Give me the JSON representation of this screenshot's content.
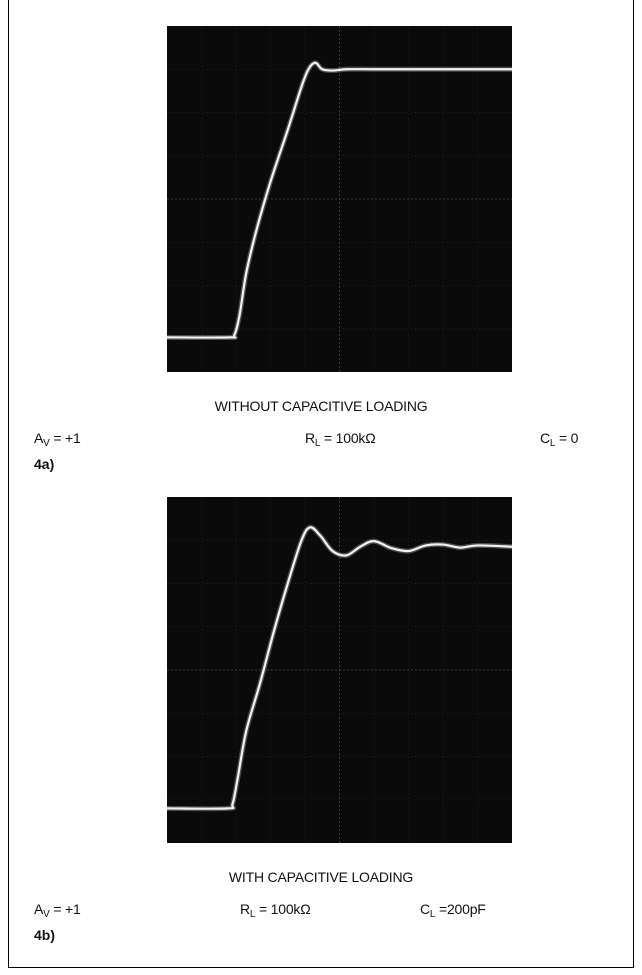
{
  "chart_data": [
    {
      "type": "line",
      "figure_label": "4a)",
      "caption": "WITHOUT CAPACITIVE LOADING",
      "conditions": {
        "av": {
          "symbol": "A",
          "sub": "V",
          "value": " = +1"
        },
        "rl": {
          "symbol": "R",
          "sub": "L",
          "value": " = 100kΩ"
        },
        "cl": {
          "symbol": "C",
          "sub": "L",
          "value": " = 0"
        }
      },
      "grid": true,
      "divisions": {
        "x": 10,
        "y": 8
      },
      "xlim": [
        0,
        10
      ],
      "ylim": [
        0,
        8
      ],
      "series": [
        {
          "x": [
            0,
            1.8,
            1.95,
            2.1,
            2.3,
            2.6,
            3.0,
            3.5,
            3.9,
            4.1,
            4.3,
            4.5,
            4.8,
            5.2,
            6,
            8,
            10
          ],
          "y": [
            0.8,
            0.8,
            0.85,
            1.3,
            2.3,
            3.3,
            4.4,
            5.6,
            6.6,
            7.0,
            7.15,
            7.0,
            6.97,
            7.0,
            7.0,
            7.0,
            7.0
          ]
        }
      ]
    },
    {
      "type": "line",
      "figure_label": "4b)",
      "caption": "WITH CAPACITIVE LOADING",
      "conditions": {
        "av": {
          "symbol": "A",
          "sub": "V",
          "value": " = +1"
        },
        "rl": {
          "symbol": "R",
          "sub": "L",
          "value": " = 100kΩ"
        },
        "cl": {
          "symbol": "C",
          "sub": "L",
          "value": " =200pF"
        }
      },
      "grid": true,
      "divisions": {
        "x": 10,
        "y": 8
      },
      "xlim": [
        0,
        10
      ],
      "ylim": [
        0,
        8
      ],
      "series": [
        {
          "x": [
            0,
            1.75,
            1.9,
            2.05,
            2.3,
            2.7,
            3.1,
            3.5,
            3.9,
            4.15,
            4.45,
            4.8,
            5.2,
            5.6,
            6.0,
            6.5,
            7.0,
            7.5,
            8.0,
            8.5,
            9.0,
            10
          ],
          "y": [
            0.8,
            0.8,
            0.9,
            1.5,
            2.6,
            3.7,
            4.9,
            6.0,
            7.0,
            7.3,
            7.1,
            6.75,
            6.65,
            6.85,
            6.98,
            6.82,
            6.75,
            6.88,
            6.9,
            6.83,
            6.88,
            6.85
          ]
        }
      ]
    }
  ]
}
